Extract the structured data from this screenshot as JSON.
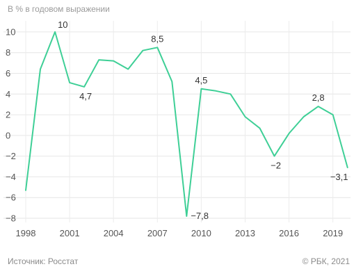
{
  "header": {
    "subtitle": "В % в годовом выражении"
  },
  "footer": {
    "source": "Источник: Росстат",
    "copyright": "© РБК, 2021"
  },
  "chart_data": {
    "type": "line",
    "title": "",
    "xlabel": "",
    "ylabel": "",
    "x": [
      1998,
      1999,
      2000,
      2001,
      2002,
      2003,
      2004,
      2005,
      2006,
      2007,
      2008,
      2009,
      2010,
      2011,
      2012,
      2013,
      2014,
      2015,
      2016,
      2017,
      2018,
      2019,
      2020
    ],
    "series": [
      {
        "values": [
          -5.3,
          6.4,
          10,
          5.1,
          4.7,
          7.3,
          7.2,
          6.4,
          8.2,
          8.5,
          5.2,
          -7.8,
          4.5,
          4.3,
          4.0,
          1.8,
          0.7,
          -2.0,
          0.2,
          1.8,
          2.8,
          2.0,
          -3.1
        ]
      }
    ],
    "xlim": [
      1998,
      2020.3
    ],
    "ylim": [
      -8,
      10.8
    ],
    "y_ticks": [
      10,
      8,
      6,
      4,
      2,
      0,
      -2,
      -4,
      -6,
      -8
    ],
    "y_tick_labels": [
      "10",
      "8",
      "6",
      "4",
      "2",
      "0",
      "−2",
      "−4",
      "−6",
      "−8"
    ],
    "x_ticks": [
      1998,
      2001,
      2004,
      2007,
      2010,
      2013,
      2016,
      2019
    ],
    "x_tick_labels": [
      "1998",
      "2001",
      "2004",
      "2007",
      "2010",
      "2013",
      "2016",
      "2019"
    ],
    "data_labels": [
      {
        "x": 2000,
        "y": 10,
        "text": "10",
        "pos": "right"
      },
      {
        "x": 2002,
        "y": 4.7,
        "text": "4,7",
        "pos": "below"
      },
      {
        "x": 2007,
        "y": 8.5,
        "text": "8,5",
        "pos": "above"
      },
      {
        "x": 2009,
        "y": -7.8,
        "text": "−7,8",
        "pos": "right"
      },
      {
        "x": 2010,
        "y": 4.5,
        "text": "4,5",
        "pos": "above"
      },
      {
        "x": 2015,
        "y": -2.0,
        "text": "−2",
        "pos": "below"
      },
      {
        "x": 2018,
        "y": 2.8,
        "text": "2,8",
        "pos": "above"
      },
      {
        "x": 2020,
        "y": -3.1,
        "text": "−3,1",
        "pos": "below-left"
      }
    ],
    "grid": true,
    "line_color": "#3ecf96"
  }
}
